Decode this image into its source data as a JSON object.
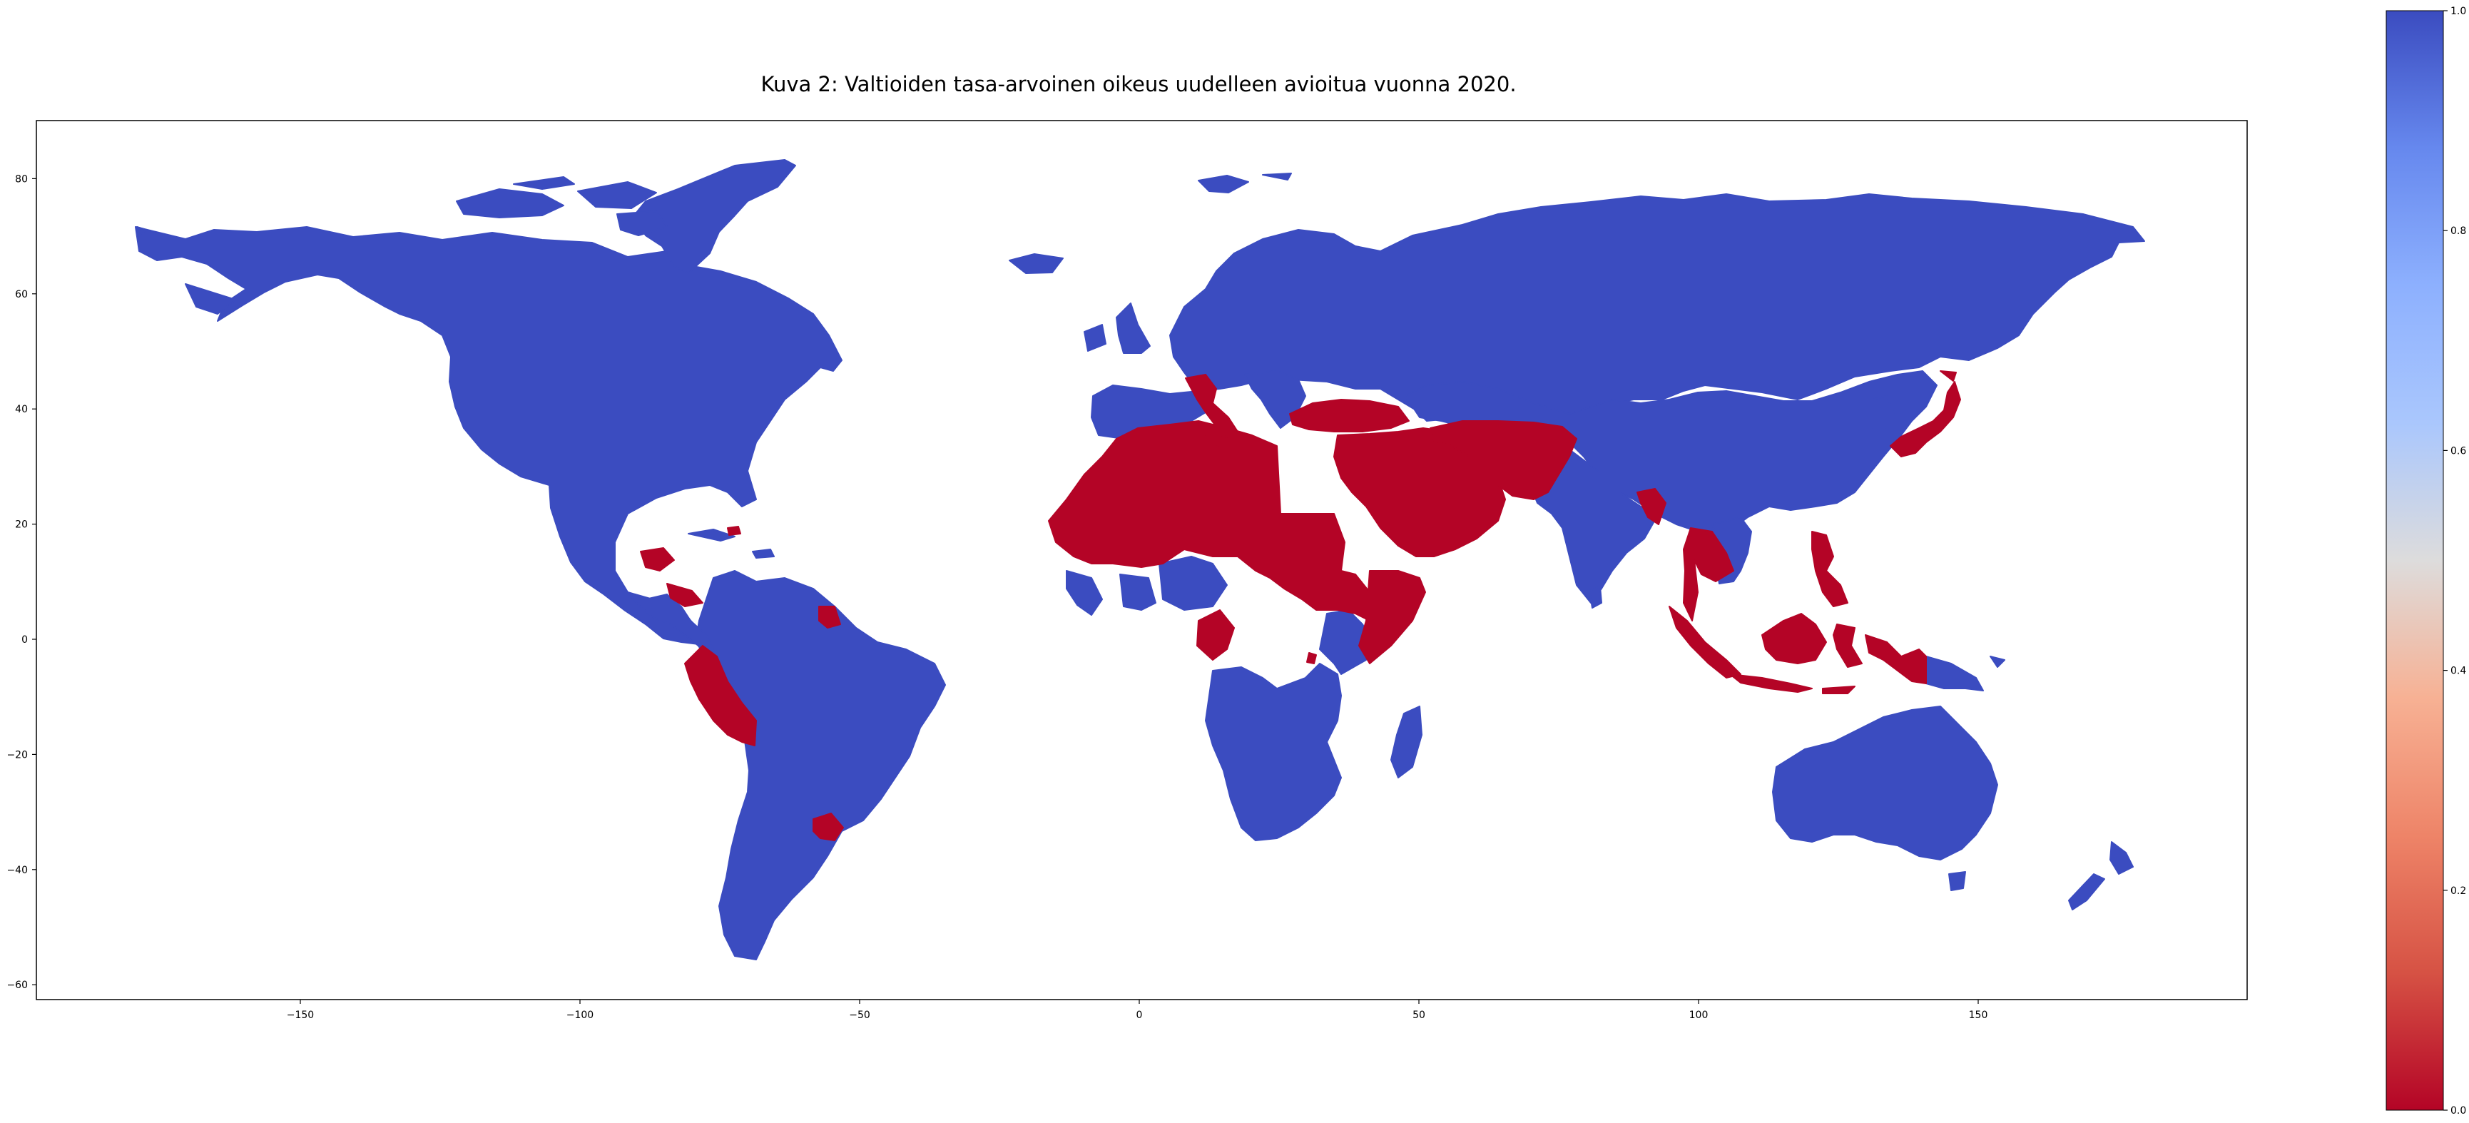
{
  "figure": {
    "title": "Kuva 2: Valtioiden tasa-arvoinen oikeus uudelleen avioitua vuonna 2020."
  },
  "map": {
    "projection": "plate-carree",
    "x_ticks": [
      "−150",
      "−100",
      "−50",
      "0",
      "50",
      "100",
      "150"
    ],
    "y_ticks": [
      "80",
      "60",
      "40",
      "20",
      "0",
      "−20",
      "−40",
      "−60"
    ],
    "colors": {
      "value_1": "#3b4cc0",
      "value_0": "#b40426"
    },
    "regions_value_1": [
      "North America",
      "Greenland",
      "Canadian Arctic islands",
      "Central America (part)",
      "Caribbean (part)",
      "South America (most)",
      "Europe (most)",
      "Iceland",
      "United Kingdom",
      "Ireland",
      "Russia",
      "Central Asia",
      "China",
      "Mongolia",
      "Korea",
      "India",
      "Sri Lanka",
      "Vietnam",
      "Sub-Saharan Africa (most)",
      "Madagascar",
      "Australia",
      "New Zealand",
      "Papua New Guinea",
      "Svalbard"
    ],
    "regions_value_0": [
      "North Africa",
      "Sahel",
      "Middle East",
      "Arabian Peninsula",
      "Turkey",
      "Iran",
      "Afghanistan",
      "Pakistan",
      "Italy",
      "Japan",
      "Myanmar",
      "Thailand",
      "Malaysia",
      "Indonesia",
      "Philippines",
      "Peru",
      "Uruguay",
      "Suriname",
      "Guatemala",
      "Cameroon",
      "Somalia",
      "Burundi"
    ]
  },
  "colorbar": {
    "colormap": "coolwarm_r",
    "ticks": [
      "0.0",
      "0.2",
      "0.4",
      "0.6",
      "0.8",
      "1.0"
    ],
    "top_color": "#3b4cc0",
    "mid_color": "#dddcdc",
    "bottom_color": "#b40426"
  }
}
